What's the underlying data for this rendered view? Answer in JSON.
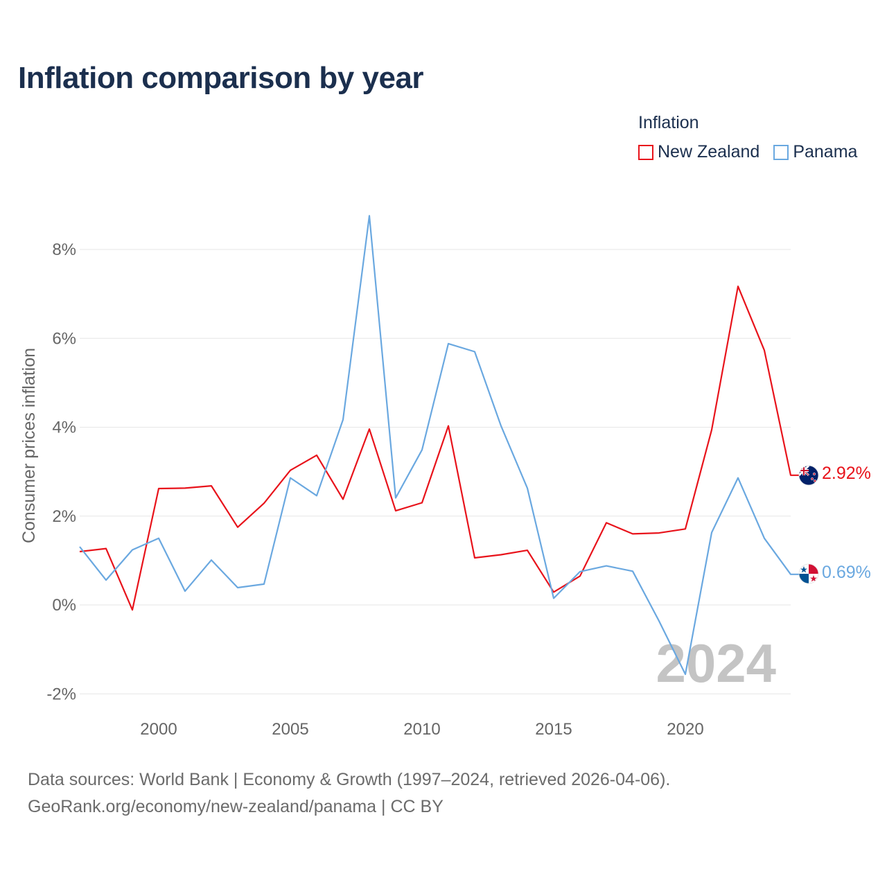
{
  "page": {
    "title": "Inflation comparison by year",
    "footer_line1": "Data sources: World Bank | Economy & Growth (1997–2024, retrieved 2026-04-06).",
    "footer_line2": "GeoRank.org/economy/new-zealand/panama | CC BY"
  },
  "legend": {
    "title": "Inflation",
    "items": [
      {
        "label": "New Zealand",
        "color": "#e8131b"
      },
      {
        "label": "Panama",
        "color": "#6aa8e0"
      }
    ]
  },
  "chart_data": {
    "type": "line",
    "ylabel": "Consumer prices inflation",
    "xlabel": "",
    "xlim": [
      1997,
      2024
    ],
    "ylim": [
      -2,
      9
    ],
    "x_ticks": [
      2000,
      2005,
      2010,
      2015,
      2020
    ],
    "y_ticks": [
      -2,
      0,
      2,
      4,
      6,
      8
    ],
    "y_tick_labels": [
      "-2%",
      "0%",
      "2%",
      "4%",
      "6%",
      "8%"
    ],
    "grid": true,
    "legend_position": "top-right",
    "annotation": "2024",
    "x": [
      1997,
      1998,
      1999,
      2000,
      2001,
      2002,
      2003,
      2004,
      2005,
      2006,
      2007,
      2008,
      2009,
      2010,
      2011,
      2012,
      2013,
      2014,
      2015,
      2016,
      2017,
      2018,
      2019,
      2020,
      2021,
      2022,
      2023,
      2024
    ],
    "series": [
      {
        "name": "New Zealand",
        "color": "#e8131b",
        "end_label": "2.92%",
        "flag": "new-zealand",
        "values": [
          1.2,
          1.27,
          -0.11,
          2.62,
          2.63,
          2.68,
          1.75,
          2.29,
          3.03,
          3.37,
          2.38,
          3.96,
          2.12,
          2.3,
          4.03,
          1.06,
          1.13,
          1.23,
          0.29,
          0.65,
          1.85,
          1.6,
          1.62,
          1.71,
          3.94,
          7.17,
          5.73,
          2.92
        ]
      },
      {
        "name": "Panama",
        "color": "#6aa8e0",
        "end_label": "0.69%",
        "flag": "panama",
        "values": [
          1.31,
          0.56,
          1.24,
          1.5,
          0.31,
          1.01,
          0.39,
          0.47,
          2.86,
          2.46,
          4.17,
          8.76,
          2.41,
          3.49,
          5.88,
          5.7,
          4.03,
          2.63,
          0.15,
          0.75,
          0.88,
          0.76,
          -0.36,
          -1.56,
          1.63,
          2.86,
          1.5,
          0.69
        ]
      }
    ]
  }
}
